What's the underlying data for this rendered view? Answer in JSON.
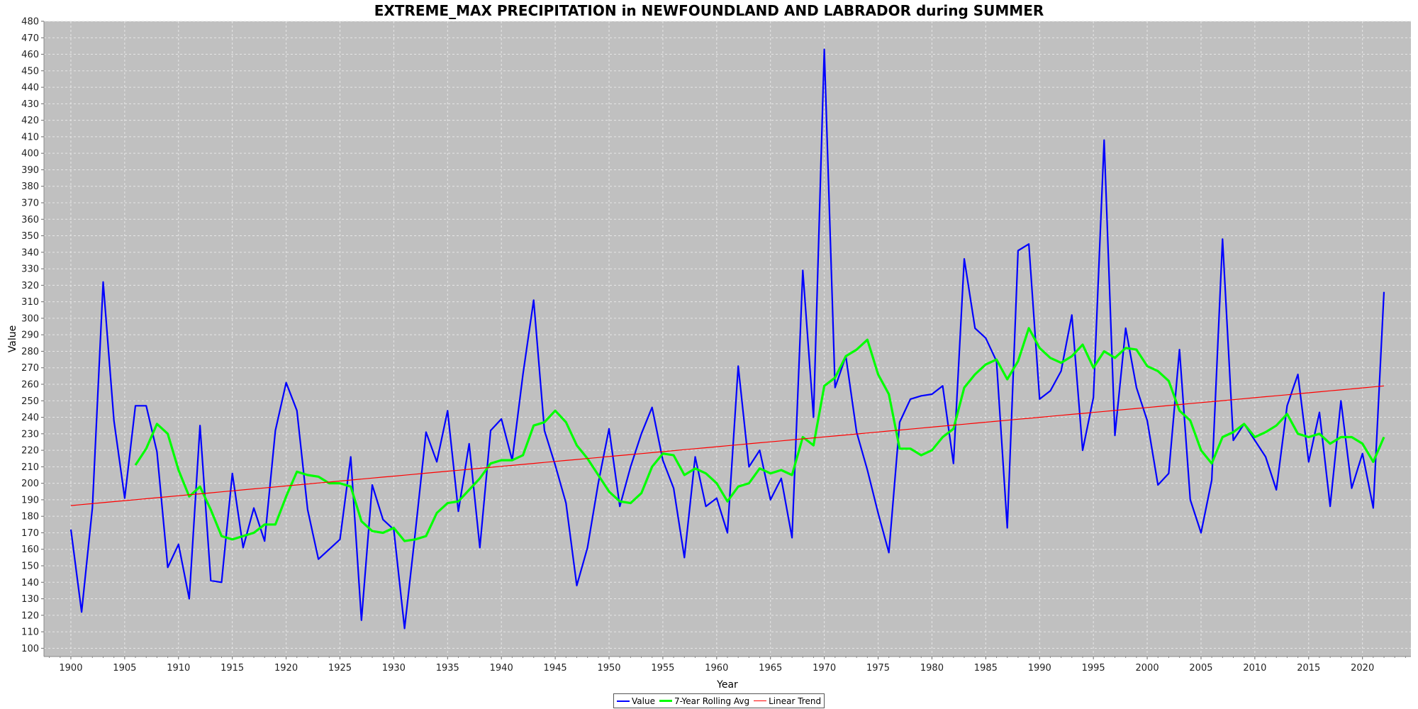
{
  "chart_data": {
    "type": "line",
    "title": "EXTREME_MAX PRECIPITATION in NEWFOUNDLAND AND LABRADOR during SUMMER",
    "xlabel": "Year",
    "ylabel": "Value",
    "xlim": [
      1897.5,
      2024.5
    ],
    "ylim": [
      95,
      480
    ],
    "x_ticks": [
      "1900",
      "1905",
      "1910",
      "1915",
      "1920",
      "1925",
      "1930",
      "1935",
      "1940",
      "1945",
      "1950",
      "1955",
      "1960",
      "1965",
      "1970",
      "1975",
      "1980",
      "1985",
      "1990",
      "1995",
      "2000",
      "2005",
      "2010",
      "2015",
      "2020"
    ],
    "y_ticks": [
      "100",
      "110",
      "120",
      "130",
      "140",
      "150",
      "160",
      "170",
      "180",
      "190",
      "200",
      "210",
      "220",
      "230",
      "240",
      "250",
      "260",
      "270",
      "280",
      "290",
      "300",
      "310",
      "320",
      "330",
      "340",
      "350",
      "360",
      "370",
      "380",
      "390",
      "400",
      "410",
      "420",
      "430",
      "440",
      "450",
      "460",
      "470",
      "480"
    ],
    "grid": true,
    "legend_position": "bottom",
    "colors": {
      "plot_background": "#c0c0c0",
      "grid": "#e6e6e6",
      "value": "#0000ff",
      "rolling": "#00ff00",
      "trend": "#ff0000"
    },
    "series": [
      {
        "name": "Value",
        "x": [
          1900,
          1901,
          1902,
          1903,
          1904,
          1905,
          1906,
          1907,
          1908,
          1909,
          1910,
          1911,
          1912,
          1913,
          1914,
          1915,
          1916,
          1917,
          1918,
          1919,
          1920,
          1921,
          1922,
          1923,
          1925,
          1926,
          1927,
          1928,
          1929,
          1930,
          1931,
          1932,
          1933,
          1934,
          1935,
          1936,
          1937,
          1938,
          1939,
          1940,
          1941,
          1942,
          1943,
          1944,
          1945,
          1946,
          1947,
          1948,
          1949,
          1950,
          1951,
          1952,
          1953,
          1954,
          1955,
          1956,
          1957,
          1958,
          1959,
          1960,
          1961,
          1962,
          1963,
          1964,
          1965,
          1966,
          1967,
          1968,
          1969,
          1970,
          1971,
          1972,
          1973,
          1974,
          1975,
          1976,
          1977,
          1978,
          1979,
          1980,
          1981,
          1982,
          1983,
          1984,
          1985,
          1986,
          1987,
          1988,
          1989,
          1990,
          1991,
          1992,
          1993,
          1994,
          1995,
          1996,
          1997,
          1998,
          1999,
          2000,
          2001,
          2002,
          2003,
          2004,
          2005,
          2006,
          2007,
          2008,
          2009,
          2010,
          2011,
          2012,
          2013,
          2014,
          2015,
          2016,
          2017,
          2018,
          2019,
          2020,
          2021,
          2022
        ],
        "values": [
          172,
          122,
          185,
          322,
          238,
          191,
          247,
          247,
          219,
          149,
          163,
          130,
          235,
          141,
          140,
          206,
          161,
          185,
          165,
          232,
          261,
          244,
          184,
          154,
          166,
          216,
          117,
          199,
          178,
          172,
          112,
          170,
          231,
          213,
          244,
          183,
          224,
          161,
          232,
          239,
          214,
          266,
          311,
          232,
          211,
          188,
          138,
          161,
          200,
          233,
          186,
          210,
          230,
          246,
          214,
          197,
          155,
          216,
          186,
          191,
          170,
          271,
          210,
          220,
          190,
          203,
          167,
          329,
          240,
          463,
          258,
          277,
          231,
          208,
          182,
          158,
          237,
          251,
          253,
          254,
          259,
          212,
          336,
          294,
          288,
          274,
          173,
          341,
          345,
          251,
          256,
          268,
          302,
          220,
          252,
          408,
          229,
          294,
          258,
          238,
          199,
          206,
          281,
          190,
          170,
          202,
          348,
          226,
          236,
          226,
          216,
          196,
          247,
          266,
          213,
          243,
          186,
          250,
          197,
          218,
          185,
          316
        ]
      },
      {
        "name": "7-Year Rolling Avg",
        "x": [
          1906,
          1907,
          1908,
          1909,
          1910,
          1911,
          1912,
          1913,
          1914,
          1915,
          1916,
          1917,
          1918,
          1919,
          1920,
          1921,
          1922,
          1923,
          1924,
          1925,
          1926,
          1927,
          1928,
          1929,
          1930,
          1931,
          1932,
          1933,
          1934,
          1935,
          1936,
          1937,
          1938,
          1939,
          1940,
          1941,
          1942,
          1943,
          1944,
          1945,
          1946,
          1947,
          1948,
          1949,
          1950,
          1951,
          1952,
          1953,
          1954,
          1955,
          1956,
          1957,
          1958,
          1959,
          1960,
          1961,
          1962,
          1963,
          1964,
          1965,
          1966,
          1967,
          1968,
          1969,
          1970,
          1971,
          1972,
          1973,
          1974,
          1975,
          1976,
          1977,
          1978,
          1979,
          1980,
          1981,
          1982,
          1983,
          1984,
          1985,
          1986,
          1987,
          1988,
          1989,
          1990,
          1991,
          1992,
          1993,
          1994,
          1995,
          1996,
          1997,
          1998,
          1999,
          2000,
          2001,
          2002,
          2003,
          2004,
          2005,
          2006,
          2007,
          2008,
          2009,
          2010,
          2011,
          2012,
          2013,
          2014,
          2015,
          2016,
          2017,
          2018,
          2019,
          2020,
          2021,
          2022
        ],
        "values": [
          211,
          221,
          236,
          230,
          208,
          192,
          198,
          184,
          168,
          166,
          168,
          170,
          175,
          175,
          192,
          207,
          205,
          204,
          200,
          200,
          198,
          177,
          171,
          170,
          173,
          165,
          166,
          168,
          182,
          188,
          189,
          196,
          203,
          212,
          214,
          214,
          217,
          235,
          237,
          244,
          237,
          223,
          215,
          205,
          195,
          189,
          188,
          194,
          210,
          218,
          217,
          205,
          209,
          206,
          200,
          189,
          198,
          200,
          209,
          206,
          208,
          205,
          228,
          223,
          259,
          264,
          277,
          281,
          287,
          266,
          254,
          221,
          221,
          217,
          220,
          228,
          233,
          258,
          266,
          272,
          275,
          263,
          274,
          294,
          282,
          276,
          273,
          277,
          284,
          270,
          280,
          276,
          282,
          281,
          271,
          268,
          262,
          244,
          238,
          220,
          212,
          228,
          231,
          236,
          228,
          231,
          235,
          242,
          230,
          228,
          230,
          224,
          228,
          228,
          224,
          213,
          228
        ]
      },
      {
        "name": "Linear Trend",
        "x": [
          1900,
          2022
        ],
        "values": [
          186.5,
          259
        ]
      }
    ]
  }
}
